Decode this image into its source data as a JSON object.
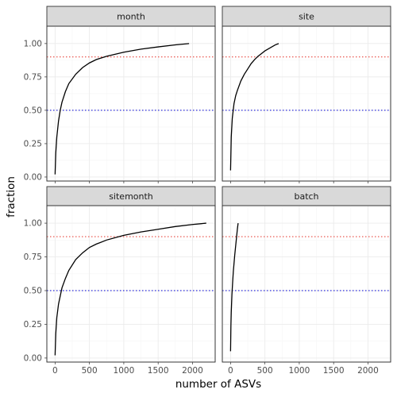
{
  "chart_data": {
    "type": "line",
    "xlabel": "number of ASVs",
    "ylabel": "fraction",
    "xlim": [
      -120,
      2330
    ],
    "ylim": [
      -0.03,
      1.13
    ],
    "xticks": [
      0,
      500,
      1000,
      1500,
      2000
    ],
    "xtick_labels": [
      "0",
      "500",
      "1000",
      "1500",
      "2000"
    ],
    "yticks": [
      0,
      0.25,
      0.5,
      0.75,
      1.0
    ],
    "ytick_labels": [
      "0.00",
      "0.25",
      "0.50",
      "0.75",
      "1.00"
    ],
    "grid": true,
    "reference_lines": [
      {
        "y": 0.9,
        "color": "#e8473f",
        "style": "dotted"
      },
      {
        "y": 0.5,
        "color": "#2b2bdc",
        "style": "dotted"
      }
    ],
    "panels": [
      {
        "title": "month",
        "x": [
          0,
          10,
          25,
          50,
          75,
          100,
          150,
          200,
          300,
          400,
          500,
          600,
          750,
          1000,
          1250,
          1500,
          1750,
          1950
        ],
        "y": [
          0.02,
          0.18,
          0.3,
          0.42,
          0.5,
          0.56,
          0.64,
          0.7,
          0.77,
          0.82,
          0.855,
          0.88,
          0.905,
          0.935,
          0.958,
          0.975,
          0.99,
          1.0
        ]
      },
      {
        "title": "site",
        "x": [
          0,
          10,
          25,
          50,
          75,
          100,
          150,
          200,
          250,
          300,
          350,
          400,
          450,
          500,
          550,
          600,
          650,
          700
        ],
        "y": [
          0.05,
          0.3,
          0.44,
          0.55,
          0.61,
          0.65,
          0.72,
          0.77,
          0.81,
          0.85,
          0.88,
          0.905,
          0.925,
          0.945,
          0.96,
          0.975,
          0.99,
          1.0
        ]
      },
      {
        "title": "sitemonth",
        "x": [
          0,
          10,
          25,
          50,
          75,
          100,
          150,
          200,
          300,
          400,
          500,
          600,
          750,
          1000,
          1250,
          1500,
          1750,
          2000,
          2200
        ],
        "y": [
          0.02,
          0.18,
          0.3,
          0.4,
          0.46,
          0.52,
          0.59,
          0.65,
          0.73,
          0.78,
          0.82,
          0.845,
          0.875,
          0.91,
          0.935,
          0.955,
          0.975,
          0.99,
          1.0
        ]
      },
      {
        "title": "batch",
        "x": [
          0,
          5,
          10,
          20,
          30,
          40,
          50,
          60,
          70,
          80,
          90,
          100,
          110
        ],
        "y": [
          0.05,
          0.24,
          0.34,
          0.47,
          0.56,
          0.64,
          0.7,
          0.76,
          0.81,
          0.86,
          0.91,
          0.96,
          1.0
        ]
      }
    ]
  }
}
